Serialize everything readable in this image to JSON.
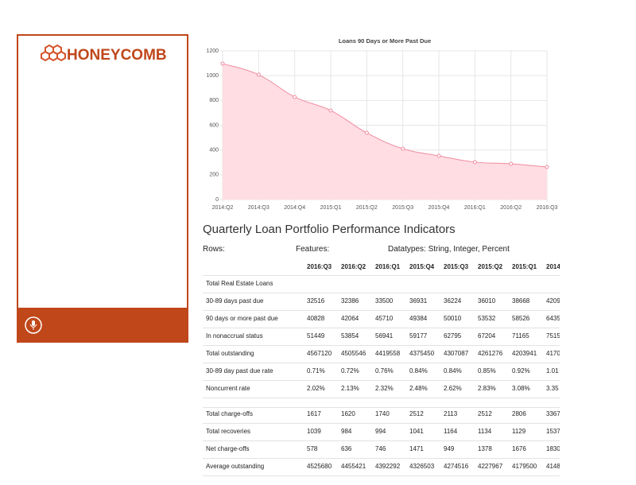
{
  "brand": "HONEYCOMB",
  "chart_data": {
    "type": "line",
    "title": "Loans 90 Days or More Past Due",
    "categories": [
      "2014:Q2",
      "2014:Q3",
      "2014:Q4",
      "2015:Q1",
      "2015:Q2",
      "2015:Q3",
      "2015:Q4",
      "2016:Q1",
      "2016:Q2",
      "2016:Q3"
    ],
    "values": [
      1097,
      1008,
      828,
      719,
      539,
      411,
      353,
      302,
      289,
      263
    ],
    "color": "#f08ca0",
    "fill": "#ffdde3",
    "ylim": [
      0,
      1200
    ],
    "yticks": [
      0,
      200,
      400,
      600,
      800,
      1000,
      1200
    ],
    "grid": true
  },
  "table": {
    "title": "Quarterly Loan Portfolio Performance Indicators",
    "rows_label": "Rows:",
    "features_label": "Features:",
    "datatypes": "Datatypes: String, Integer, Percent",
    "columns": [
      "2016:Q3",
      "2016:Q2",
      "2016:Q1",
      "2015:Q4",
      "2015:Q3",
      "2015:Q2",
      "2015:Q1",
      "2014"
    ],
    "groups": [
      {
        "title": "Total Real Estate Loans",
        "rows": [
          {
            "label": "30-89 days past due",
            "cells": [
              "32516",
              "32386",
              "33500",
              "36931",
              "36224",
              "36010",
              "38668",
              "4209"
            ]
          },
          {
            "label": "90 days or more past due",
            "cells": [
              "40828",
              "42064",
              "45710",
              "49384",
              "50010",
              "53532",
              "58526",
              "6435"
            ]
          },
          {
            "label": "In nonaccrual status",
            "cells": [
              "51449",
              "53854",
              "56941",
              "59177",
              "62795",
              "67204",
              "71165",
              "7515"
            ]
          },
          {
            "label": "Total outstanding",
            "cells": [
              "4567120",
              "4505546",
              "4419558",
              "4375450",
              "4307087",
              "4261276",
              "4203941",
              "4170"
            ]
          },
          {
            "label": "30-89 day past due rate",
            "cells": [
              "0.71%",
              "0.72%",
              "0.76%",
              "0.84%",
              "0.84%",
              "0.85%",
              "0.92%",
              "1.01"
            ]
          },
          {
            "label": "Noncurrent rate",
            "cells": [
              "2.02%",
              "2.13%",
              "2.32%",
              "2.48%",
              "2.62%",
              "2.83%",
              "3.08%",
              "3.35"
            ]
          }
        ]
      },
      {
        "rows": [
          {
            "label": "Total charge-offs",
            "cells": [
              "1617",
              "1620",
              "1740",
              "2512",
              "2113",
              "2512",
              "2806",
              "3367"
            ]
          },
          {
            "label": "Total recoveries",
            "cells": [
              "1039",
              "984",
              "994",
              "1041",
              "1164",
              "1134",
              "1129",
              "1537"
            ]
          },
          {
            "label": "Net charge-offs",
            "cells": [
              "578",
              "636",
              "746",
              "1471",
              "949",
              "1378",
              "1676",
              "1830"
            ]
          },
          {
            "label": "Average outstanding",
            "cells": [
              "4525680",
              "4455421",
              "4392292",
              "4326503",
              "4274516",
              "4227967",
              "4179500",
              "4148"
            ]
          }
        ]
      }
    ]
  }
}
